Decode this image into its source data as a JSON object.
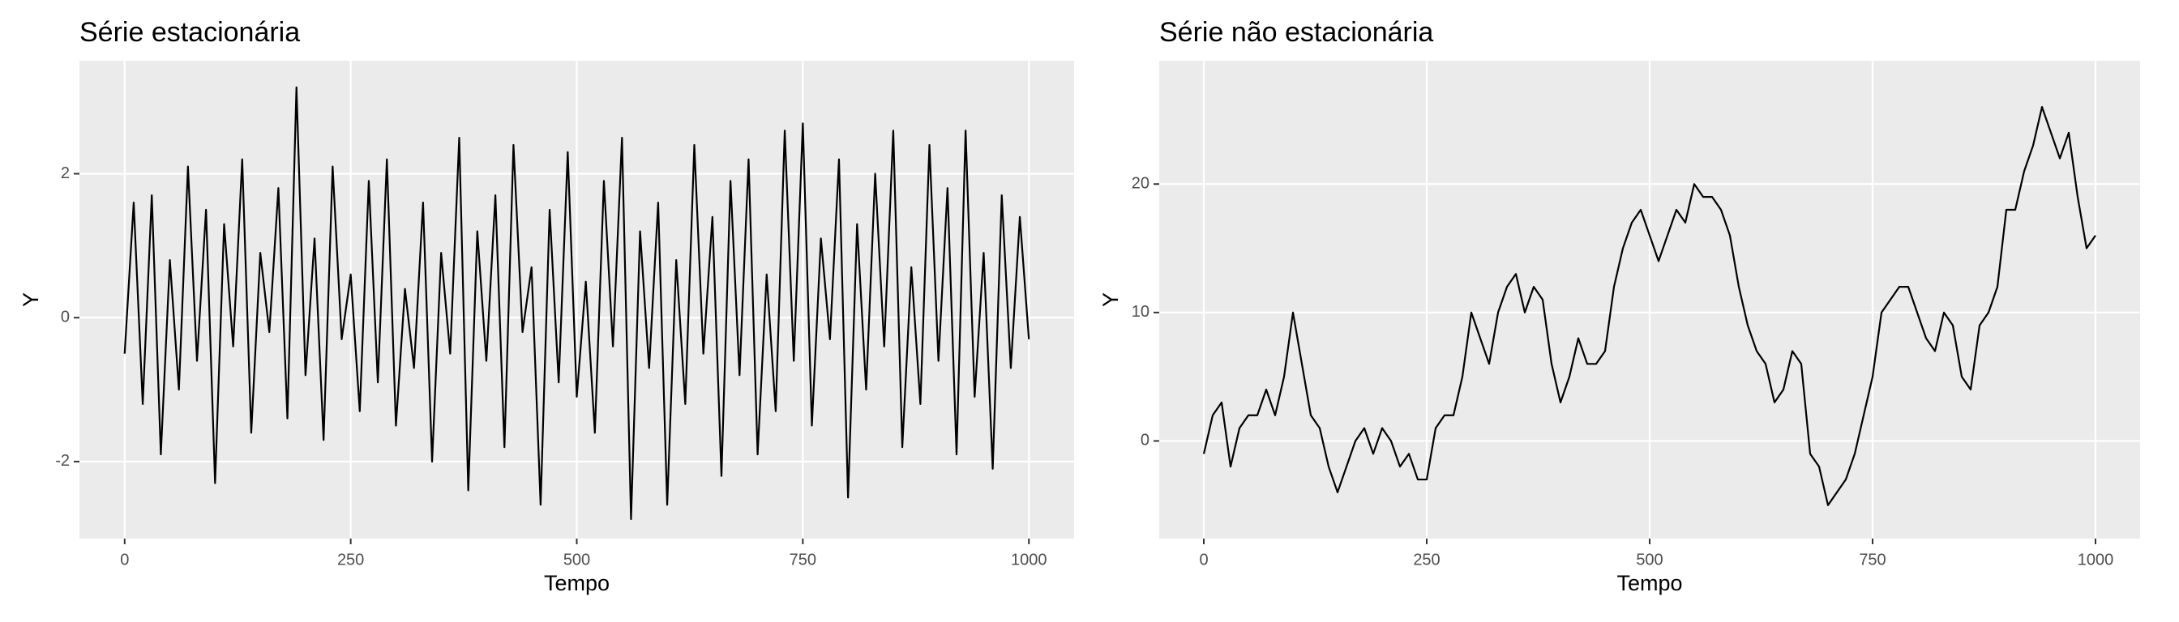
{
  "chart_data": [
    {
      "type": "line",
      "title": "Série estacionária",
      "x_label": "Tempo",
      "y_label": "Y",
      "color": "#000000",
      "grid": true,
      "xlim": [
        -50,
        1050
      ],
      "ylim": [
        -3.07,
        3.57
      ],
      "xticks": [
        0,
        250,
        500,
        750,
        1000
      ],
      "yticks": [
        -2,
        0,
        2
      ],
      "x": [
        0,
        10,
        20,
        30,
        40,
        50,
        60,
        70,
        80,
        90,
        100,
        110,
        120,
        130,
        140,
        150,
        160,
        170,
        180,
        190,
        200,
        210,
        220,
        230,
        240,
        250,
        260,
        270,
        280,
        290,
        300,
        310,
        320,
        330,
        340,
        350,
        360,
        370,
        380,
        390,
        400,
        410,
        420,
        430,
        440,
        450,
        460,
        470,
        480,
        490,
        500,
        510,
        520,
        530,
        540,
        550,
        560,
        570,
        580,
        590,
        600,
        610,
        620,
        630,
        640,
        650,
        660,
        670,
        680,
        690,
        700,
        710,
        720,
        730,
        740,
        750,
        760,
        770,
        780,
        790,
        800,
        810,
        820,
        830,
        840,
        850,
        860,
        870,
        880,
        890,
        900,
        910,
        920,
        930,
        940,
        950,
        960,
        970,
        980,
        990,
        1000
      ],
      "values": [
        -0.5,
        1.6,
        -1.2,
        1.7,
        -1.9,
        0.8,
        -1.0,
        2.1,
        -0.6,
        1.5,
        -2.3,
        1.3,
        -0.4,
        2.2,
        -1.6,
        0.9,
        -0.2,
        1.8,
        -1.4,
        3.2,
        -0.8,
        1.1,
        -1.7,
        2.1,
        -0.3,
        0.6,
        -1.3,
        1.9,
        -0.9,
        2.2,
        -1.5,
        0.4,
        -0.7,
        1.6,
        -2.0,
        0.9,
        -0.5,
        2.5,
        -2.4,
        1.2,
        -0.6,
        1.7,
        -1.8,
        2.4,
        -0.2,
        0.7,
        -2.6,
        1.5,
        -0.9,
        2.3,
        -1.1,
        0.5,
        -1.6,
        1.9,
        -0.4,
        2.5,
        -2.8,
        1.2,
        -0.7,
        1.6,
        -2.6,
        0.8,
        -1.2,
        2.4,
        -0.5,
        1.4,
        -2.2,
        1.9,
        -0.8,
        2.2,
        -1.9,
        0.6,
        -1.3,
        2.6,
        -0.6,
        2.7,
        -1.5,
        1.1,
        -0.3,
        2.2,
        -2.5,
        1.3,
        -1.0,
        2.0,
        -0.4,
        2.6,
        -1.8,
        0.7,
        -1.2,
        2.4,
        -0.6,
        1.8,
        -1.9,
        2.6,
        -1.1,
        0.9,
        -2.1,
        1.7,
        -0.7,
        1.4,
        -0.3
      ]
    },
    {
      "type": "line",
      "title": "Série não estacionária",
      "x_label": "Tempo",
      "y_label": "Y",
      "color": "#000000",
      "grid": true,
      "xlim": [
        -50,
        1050
      ],
      "ylim": [
        -7.6,
        29.6
      ],
      "xticks": [
        0,
        250,
        500,
        750,
        1000
      ],
      "yticks": [
        0,
        10,
        20
      ],
      "x": [
        0,
        10,
        20,
        30,
        40,
        50,
        60,
        70,
        80,
        90,
        100,
        110,
        120,
        130,
        140,
        150,
        160,
        170,
        180,
        190,
        200,
        210,
        220,
        230,
        240,
        250,
        260,
        270,
        280,
        290,
        300,
        310,
        320,
        330,
        340,
        350,
        360,
        370,
        380,
        390,
        400,
        410,
        420,
        430,
        440,
        450,
        460,
        470,
        480,
        490,
        500,
        510,
        520,
        530,
        540,
        550,
        560,
        570,
        580,
        590,
        600,
        610,
        620,
        630,
        640,
        650,
        660,
        670,
        680,
        690,
        700,
        710,
        720,
        730,
        740,
        750,
        760,
        770,
        780,
        790,
        800,
        810,
        820,
        830,
        840,
        850,
        860,
        870,
        880,
        890,
        900,
        910,
        920,
        930,
        940,
        950,
        960,
        970,
        980,
        990,
        1000
      ],
      "values": [
        -1,
        2,
        3,
        -2,
        1,
        2,
        2,
        4,
        2,
        5,
        10,
        6,
        2,
        1,
        -2,
        -4,
        -2,
        0,
        1,
        -1,
        1,
        0,
        -2,
        -1,
        -3,
        -3,
        1,
        2,
        2,
        5,
        10,
        8,
        6,
        10,
        12,
        13,
        10,
        12,
        11,
        6,
        3,
        5,
        8,
        6,
        6,
        7,
        12,
        15,
        17,
        18,
        16,
        14,
        16,
        18,
        17,
        20,
        19,
        19,
        18,
        16,
        12,
        9,
        7,
        6,
        3,
        4,
        7,
        6,
        -1,
        -2,
        -5,
        -4,
        -3,
        -1,
        2,
        5,
        10,
        11,
        12,
        12,
        10,
        8,
        7,
        10,
        9,
        5,
        4,
        9,
        10,
        12,
        18,
        18,
        21,
        23,
        26,
        24,
        22,
        24,
        19,
        15,
        16
      ]
    }
  ]
}
